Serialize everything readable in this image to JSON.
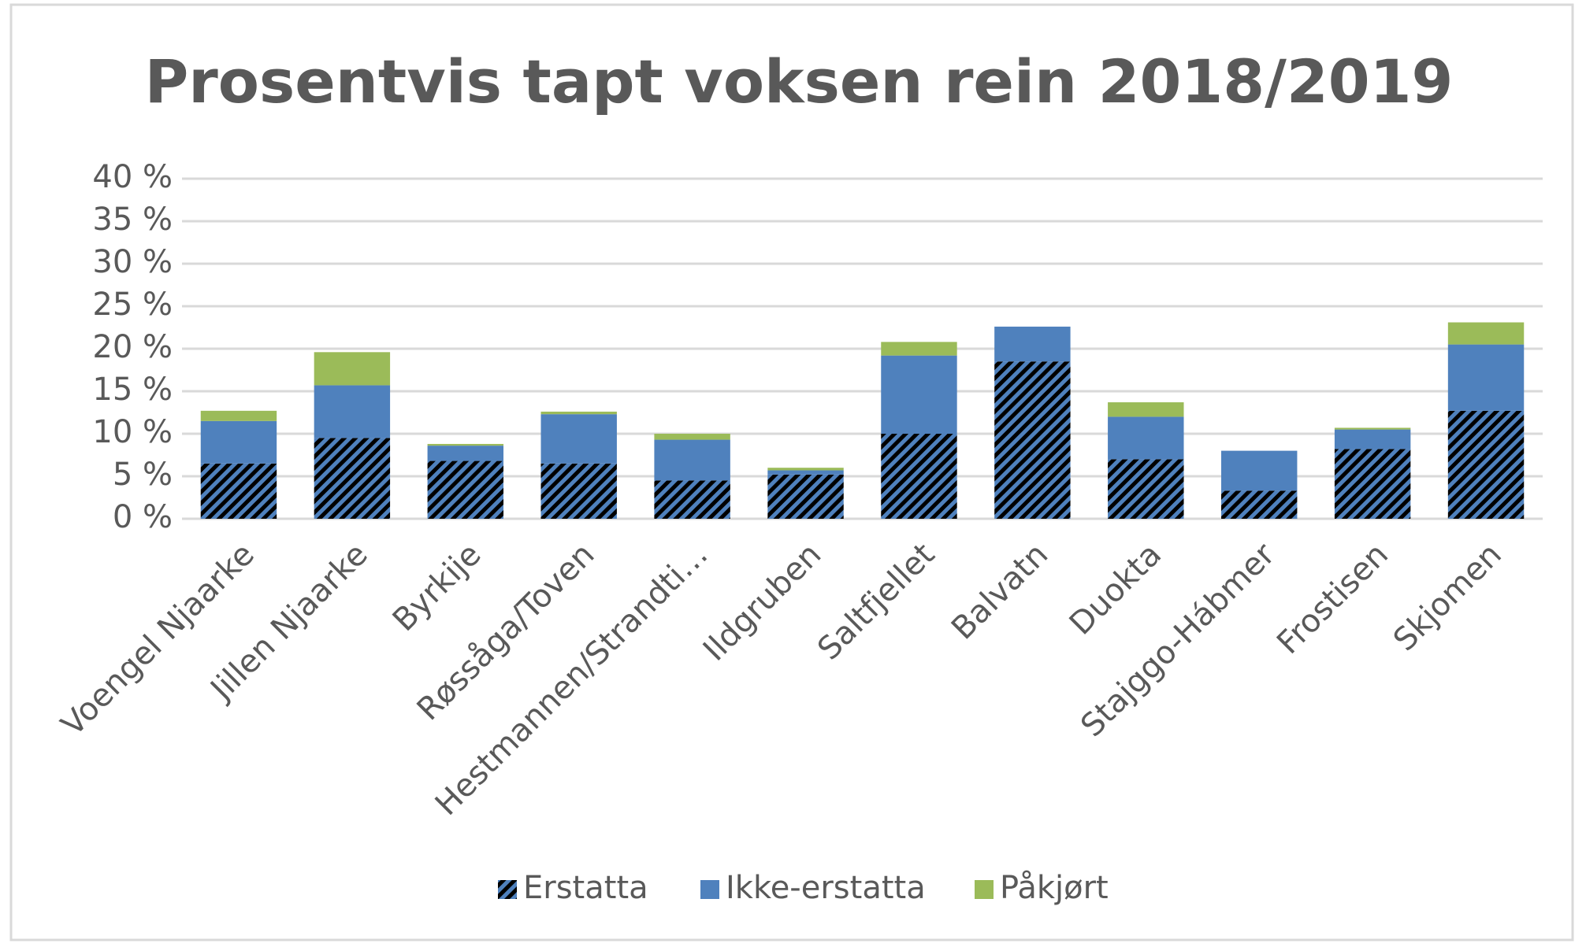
{
  "chart_data": {
    "type": "stacked_bar",
    "title": "Prosentvis tapt voksen rein 2018/2019",
    "categories": [
      "Voengel Njaarke",
      "Jillen Njaarke",
      "Byrkije",
      "Røssåga/Toven",
      "Hestmannen/Strandti…",
      "Ildgruben",
      "Saltfjellet",
      "Balvatn",
      "Duokta",
      "Stajggo-Hábmer",
      "Frostisen",
      "Skjomen"
    ],
    "series": [
      {
        "name": "Erstatta",
        "color": "#4f81bd",
        "hatch": true,
        "values": [
          6.5,
          9.5,
          6.8,
          6.5,
          4.5,
          5.2,
          10.0,
          18.5,
          7.0,
          3.3,
          8.2,
          12.7
        ]
      },
      {
        "name": "Ikke-erstatta",
        "color": "#4f81bd",
        "values": [
          5.0,
          6.2,
          1.8,
          5.8,
          4.8,
          0.5,
          9.2,
          4.1,
          5.0,
          4.7,
          2.3,
          7.8
        ]
      },
      {
        "name": "Påkjørt",
        "color": "#9bbb59",
        "values": [
          1.2,
          3.9,
          0.2,
          0.3,
          0.7,
          0.3,
          1.6,
          0,
          1.7,
          0,
          0.2,
          2.6
        ]
      }
    ],
    "ylim": [
      0,
      40
    ],
    "yticks": [
      {
        "value": 0,
        "label": "0 %"
      },
      {
        "value": 5,
        "label": "5 %"
      },
      {
        "value": 10,
        "label": "10 %"
      },
      {
        "value": 15,
        "label": "15 %"
      },
      {
        "value": 20,
        "label": "20 %"
      },
      {
        "value": 25,
        "label": "25 %"
      },
      {
        "value": 30,
        "label": "30 %"
      },
      {
        "value": 35,
        "label": "35 %"
      },
      {
        "value": 40,
        "label": "40 %"
      }
    ],
    "grid": true,
    "legend": "bottom"
  }
}
